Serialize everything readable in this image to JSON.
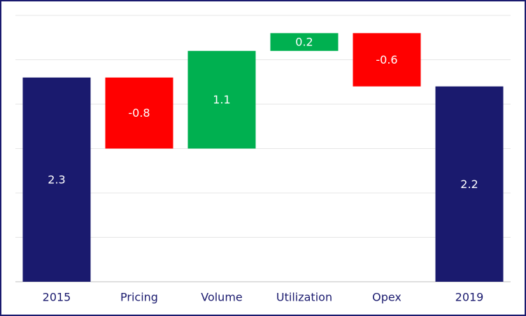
{
  "chart_data": {
    "type": "waterfall",
    "categories": [
      "2015",
      "Pricing",
      "Volume",
      "Utilization",
      "Opex",
      "2019"
    ],
    "values": [
      2.3,
      -0.8,
      1.1,
      0.2,
      -0.6,
      2.2
    ],
    "is_total": [
      true,
      false,
      false,
      false,
      false,
      true
    ],
    "colors": {
      "total": "#1a1a6e",
      "increase": "#00b050",
      "decrease": "#ff0000"
    },
    "ylim": [
      0,
      3
    ],
    "yticks": [
      0,
      0.5,
      1,
      1.5,
      2,
      2.5,
      3
    ],
    "grid": true
  }
}
